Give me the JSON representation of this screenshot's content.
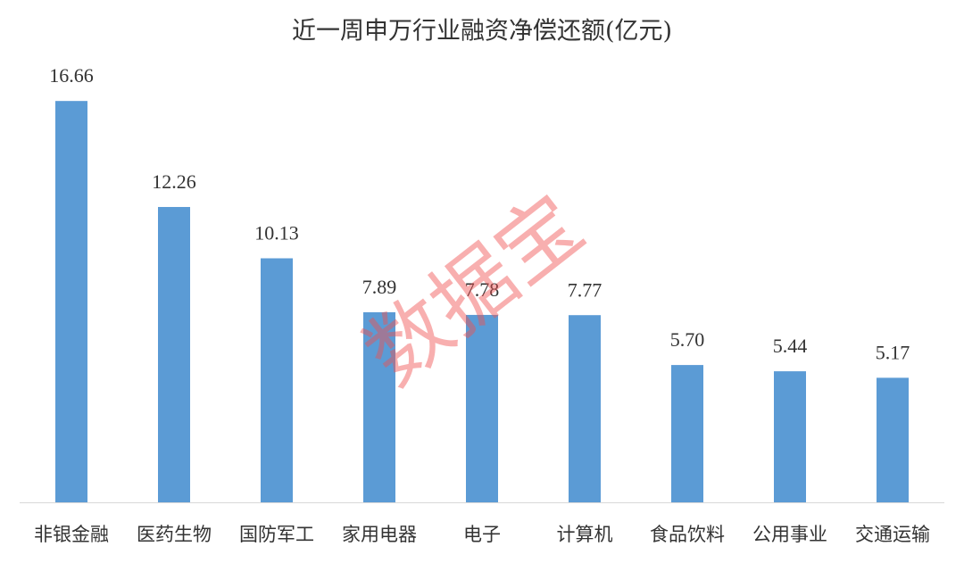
{
  "chart_data": {
    "type": "bar",
    "title": "近一周申万行业融资净偿还额(亿元)",
    "categories": [
      "非银金融",
      "医药生物",
      "国防军工",
      "家用电器",
      "电子",
      "计算机",
      "食品饮料",
      "公用事业",
      "交通运输"
    ],
    "values": [
      16.66,
      12.26,
      10.13,
      7.89,
      7.78,
      7.77,
      5.7,
      5.44,
      5.17
    ],
    "value_labels": [
      "16.66",
      "12.26",
      "10.13",
      "7.89",
      "7.78",
      "7.77",
      "5.70",
      "5.44",
      "5.17"
    ],
    "color": "#5b9bd5",
    "ylim": [
      0,
      18
    ],
    "watermark": "数据宝"
  }
}
